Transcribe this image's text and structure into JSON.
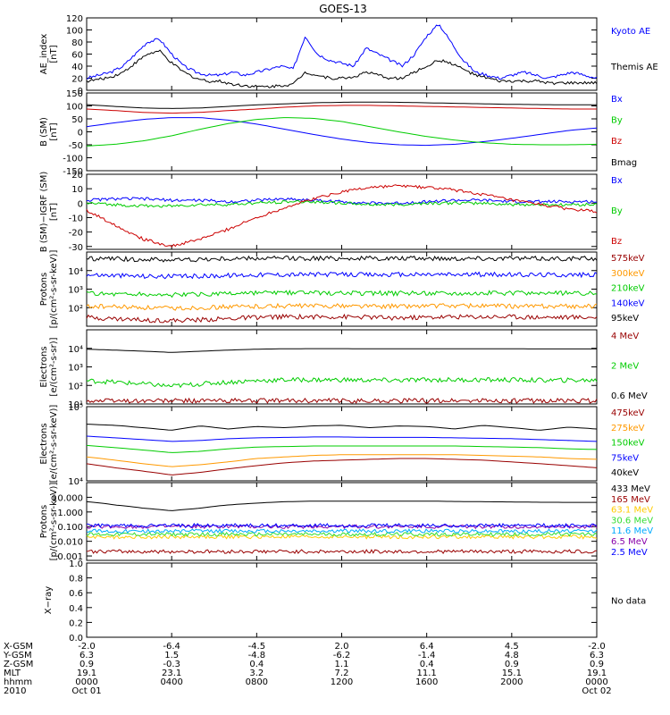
{
  "title": "GOES-13",
  "colors": {
    "black": "#000000",
    "blue": "#0000ff",
    "green": "#00cc00",
    "red": "#cc0000",
    "orange": "#ff9900",
    "darkred": "#990000",
    "yellow": "#ffcc00",
    "cyan": "#00aaff",
    "purple": "#8800aa",
    "brightgreen": "#33dd33"
  },
  "chart_data": [
    {
      "type": "line",
      "panel": "ae",
      "ylabel": "AE_index\n[nT]",
      "yticks": [
        "120",
        "100",
        "80",
        "60",
        "40",
        "20",
        "0"
      ],
      "ylim": [
        0,
        120
      ],
      "series": [
        {
          "name": "Kyoto AE",
          "color": "blue",
          "style": "noisy",
          "values": [
            20,
            25,
            30,
            40,
            60,
            80,
            85,
            60,
            40,
            30,
            25,
            25,
            30,
            25,
            30,
            35,
            40,
            35,
            90,
            60,
            50,
            45,
            40,
            70,
            60,
            50,
            40,
            60,
            90,
            110,
            80,
            50,
            30,
            25,
            20,
            25,
            30,
            25,
            20,
            25,
            30,
            25,
            20
          ]
        },
        {
          "name": "Themis AE",
          "color": "black",
          "style": "noisy",
          "values": [
            15,
            18,
            22,
            30,
            45,
            60,
            65,
            45,
            30,
            20,
            15,
            15,
            10,
            8,
            6,
            6,
            8,
            10,
            30,
            25,
            20,
            20,
            22,
            30,
            25,
            20,
            20,
            30,
            40,
            50,
            45,
            35,
            25,
            20,
            15,
            15,
            15,
            15,
            12,
            12,
            12,
            12,
            12
          ]
        }
      ]
    },
    {
      "type": "line",
      "panel": "b",
      "ylabel": "B (SM)\n[nT]",
      "yticks": [
        "150",
        "100",
        "50",
        "0",
        "-50",
        "-100",
        "-150"
      ],
      "ylim": [
        -150,
        150
      ],
      "series": [
        {
          "name": "Bx",
          "color": "blue",
          "values": [
            20,
            35,
            48,
            55,
            55,
            45,
            30,
            10,
            -10,
            -28,
            -42,
            -50,
            -52,
            -48,
            -38,
            -25,
            -10,
            5,
            15
          ]
        },
        {
          "name": "By",
          "color": "green",
          "values": [
            -55,
            -48,
            -35,
            -15,
            10,
            32,
            48,
            55,
            52,
            40,
            20,
            0,
            -18,
            -32,
            -42,
            -48,
            -50,
            -50,
            -48
          ]
        },
        {
          "name": "Bz",
          "color": "red",
          "values": [
            88,
            82,
            75,
            72,
            75,
            82,
            88,
            95,
            100,
            102,
            102,
            100,
            98,
            96,
            94,
            92,
            90,
            88,
            88
          ]
        },
        {
          "name": "Bmag",
          "color": "black",
          "values": [
            105,
            98,
            92,
            90,
            92,
            98,
            104,
            108,
            112,
            114,
            115,
            114,
            112,
            110,
            108,
            106,
            105,
            104,
            104
          ]
        }
      ]
    },
    {
      "type": "line",
      "panel": "bdiff",
      "ylabel": "B (SM)−IGRF (SM)\n[nT]",
      "yticks": [
        "20",
        "10",
        "0",
        "-10",
        "-20",
        "-30"
      ],
      "ylim": [
        -32,
        20
      ],
      "series": [
        {
          "name": "Bx",
          "color": "blue",
          "style": "noisy",
          "values": [
            2,
            3,
            3,
            2,
            2,
            1,
            2,
            3,
            2,
            1,
            0,
            0,
            1,
            2,
            2,
            1,
            1,
            1,
            1
          ]
        },
        {
          "name": "By",
          "color": "green",
          "style": "noisy",
          "values": [
            0,
            -1,
            -2,
            -2,
            -1,
            -1,
            0,
            1,
            1,
            0,
            -1,
            -1,
            0,
            0,
            0,
            -1,
            -1,
            -1,
            -1
          ]
        },
        {
          "name": "Bz",
          "color": "red",
          "style": "noisy",
          "values": [
            -5,
            -15,
            -25,
            -30,
            -25,
            -18,
            -10,
            -3,
            3,
            8,
            11,
            12,
            11,
            9,
            6,
            2,
            -1,
            -4,
            -6
          ]
        }
      ]
    },
    {
      "type": "line",
      "panel": "protons_low",
      "ylabel": "Protons\n[p/(cm²-s-sr-keV)]",
      "yscale": "log",
      "yticks": [
        "10⁴",
        "10³",
        "10²"
      ],
      "ylim": [
        10,
        100000
      ],
      "series": [
        {
          "name": "575keV",
          "color": "darkred",
          "style": "noisy",
          "values": [
            30,
            25,
            22,
            20,
            22,
            25,
            30,
            32,
            32,
            32,
            30,
            28,
            30,
            32,
            32,
            32,
            30,
            30,
            30
          ]
        },
        {
          "name": "300keV",
          "color": "orange",
          "style": "noisy",
          "values": [
            120,
            110,
            100,
            90,
            100,
            110,
            120,
            125,
            125,
            125,
            120,
            120,
            125,
            125,
            125,
            120,
            120,
            120,
            120
          ]
        },
        {
          "name": "210keV",
          "color": "green",
          "style": "noisy",
          "values": [
            600,
            560,
            520,
            480,
            520,
            560,
            600,
            620,
            620,
            620,
            600,
            600,
            620,
            620,
            620,
            600,
            600,
            600,
            600
          ]
        },
        {
          "name": "140keV",
          "color": "blue",
          "style": "noisy",
          "values": [
            6000,
            5500,
            5000,
            4800,
            5000,
            5500,
            6000,
            6200,
            6200,
            6200,
            6000,
            6000,
            6200,
            6200,
            6200,
            6000,
            6000,
            6000,
            6000
          ]
        },
        {
          "name": "95keV",
          "color": "black",
          "style": "noisy",
          "values": [
            45000,
            43000,
            40000,
            38000,
            40000,
            43000,
            45000,
            46000,
            46000,
            46000,
            45000,
            45000,
            46000,
            46000,
            46000,
            45000,
            45000,
            45000,
            45000
          ]
        }
      ]
    },
    {
      "type": "line",
      "panel": "electrons_mev",
      "ylabel": "Electrons\n[e/(cm²-s-sr)]",
      "yscale": "log",
      "yticks": [
        "10⁴",
        "10³",
        "10²",
        "10¹"
      ],
      "ylim": [
        10,
        100000
      ],
      "series": [
        {
          "name": "4 MeV",
          "color": "darkred",
          "style": "noisy",
          "values": [
            15,
            15,
            15,
            15,
            15,
            15,
            15,
            15,
            15,
            15,
            15,
            15,
            15,
            15,
            15,
            15,
            15,
            15,
            15
          ]
        },
        {
          "name": "2 MeV",
          "color": "green",
          "style": "noisy",
          "values": [
            180,
            150,
            120,
            90,
            120,
            150,
            180,
            200,
            200,
            200,
            190,
            190,
            200,
            200,
            200,
            200,
            190,
            190,
            190
          ]
        },
        {
          "name": "0.6 MeV",
          "color": "black",
          "values": [
            9000,
            8000,
            7000,
            6000,
            7000,
            8000,
            9000,
            9500,
            9600,
            9600,
            9500,
            9400,
            9500,
            9500,
            9500,
            9400,
            9300,
            9300,
            9300
          ]
        }
      ]
    },
    {
      "type": "line",
      "panel": "electrons_kev",
      "ylabel": "Electrons\n[e/(cm²-s-sr-keV)]",
      "yscale": "log",
      "yticks": [
        "10⁵",
        "10⁴"
      ],
      "ylim": [
        10000,
        100000
      ],
      "series": [
        {
          "name": "475keV",
          "color": "darkred",
          "values": [
            17000,
            15000,
            13500,
            12000,
            13000,
            14500,
            16000,
            17500,
            18500,
            19000,
            19500,
            20000,
            20000,
            19500,
            19000,
            18000,
            17000,
            16000,
            15000
          ]
        },
        {
          "name": "275keV",
          "color": "orange",
          "values": [
            21000,
            19000,
            17000,
            15500,
            16500,
            18000,
            20000,
            21000,
            22000,
            22500,
            22500,
            22500,
            22500,
            22500,
            22000,
            21500,
            21000,
            20000,
            19500
          ]
        },
        {
          "name": "150keV",
          "color": "green",
          "values": [
            30000,
            28000,
            26000,
            24000,
            25000,
            27000,
            28500,
            29000,
            29500,
            29500,
            29500,
            29500,
            29500,
            29500,
            29000,
            28500,
            28000,
            27000,
            26500
          ]
        },
        {
          "name": "75keV",
          "color": "blue",
          "values": [
            40000,
            38000,
            36000,
            34000,
            35000,
            37000,
            38000,
            38500,
            39000,
            39000,
            38500,
            38500,
            38500,
            38000,
            37500,
            37000,
            36000,
            35000,
            34000
          ]
        },
        {
          "name": "40keV",
          "color": "black",
          "values": [
            58000,
            56000,
            52000,
            48000,
            55000,
            50000,
            54000,
            52000,
            55000,
            56000,
            52000,
            55000,
            54000,
            50000,
            56000,
            52000,
            48000,
            53000,
            50000
          ]
        }
      ]
    },
    {
      "type": "line",
      "panel": "protons_high",
      "ylabel": "Protons\n[p/(cm²-s-sr-keV)]",
      "yscale": "log",
      "yticks": [
        "10.000",
        "1.000",
        "0.100",
        "0.010",
        "0.001"
      ],
      "ylim": [
        0.0005,
        100
      ],
      "series": [
        {
          "name": "433 MeV",
          "color": "black",
          "values": [
            5,
            3,
            1.8,
            1.2,
            1.8,
            3,
            4,
            5,
            5.5,
            5.5,
            5.5,
            5.5,
            5.5,
            5.2,
            5,
            4.8,
            4.6,
            4.5,
            4.5
          ]
        },
        {
          "name": "165 MeV",
          "color": "darkred",
          "style": "noisy",
          "values": [
            0.002,
            0.002,
            0.002,
            0.002,
            0.002,
            0.002,
            0.002,
            0.002,
            0.002,
            0.002,
            0.002,
            0.002,
            0.002,
            0.002,
            0.002,
            0.002,
            0.002,
            0.002,
            0.002
          ]
        },
        {
          "name": "63.1 MeV",
          "color": "yellow",
          "style": "noisy",
          "values": [
            0.02,
            0.02,
            0.02,
            0.02,
            0.02,
            0.02,
            0.02,
            0.02,
            0.02,
            0.02,
            0.02,
            0.02,
            0.02,
            0.02,
            0.02,
            0.02,
            0.02,
            0.02,
            0.02
          ]
        },
        {
          "name": "30.6 MeV",
          "color": "brightgreen",
          "style": "noisy",
          "values": [
            0.03,
            0.03,
            0.03,
            0.03,
            0.03,
            0.03,
            0.03,
            0.03,
            0.03,
            0.03,
            0.03,
            0.03,
            0.03,
            0.03,
            0.03,
            0.03,
            0.03,
            0.03,
            0.03
          ]
        },
        {
          "name": "11.6 MeV",
          "color": "cyan",
          "style": "noisy",
          "values": [
            0.05,
            0.05,
            0.05,
            0.05,
            0.05,
            0.05,
            0.05,
            0.05,
            0.05,
            0.05,
            0.05,
            0.05,
            0.05,
            0.05,
            0.05,
            0.05,
            0.05,
            0.05,
            0.05
          ]
        },
        {
          "name": "6.5 MeV",
          "color": "purple",
          "style": "noisy",
          "values": [
            0.1,
            0.1,
            0.1,
            0.1,
            0.1,
            0.1,
            0.1,
            0.1,
            0.1,
            0.1,
            0.1,
            0.1,
            0.1,
            0.1,
            0.1,
            0.1,
            0.1,
            0.1,
            0.1
          ]
        },
        {
          "name": "2.5 MeV",
          "color": "blue",
          "style": "noisy",
          "values": [
            0.12,
            0.12,
            0.12,
            0.12,
            0.12,
            0.12,
            0.12,
            0.12,
            0.12,
            0.12,
            0.12,
            0.12,
            0.12,
            0.12,
            0.12,
            0.12,
            0.12,
            0.12,
            0.12
          ]
        }
      ]
    },
    {
      "type": "line",
      "panel": "xray",
      "ylabel": "X−ray",
      "yticks": [
        "1.0",
        "0.8",
        "0.6",
        "0.4",
        "0.2",
        "0.0"
      ],
      "ylim": [
        0,
        1
      ],
      "note": "No data",
      "series": []
    }
  ],
  "orbit_table": {
    "labels": [
      "X-GSM",
      "Y-GSM",
      "Z-GSM",
      "MLT",
      "hhmm",
      "2010"
    ],
    "columns": [
      [
        "-2.0",
        "6.3",
        "0.9",
        "19.1",
        "0000",
        "Oct 01"
      ],
      [
        "-6.4",
        "1.5",
        "-0.3",
        "23.1",
        "0400",
        ""
      ],
      [
        "-4.5",
        "-4.8",
        "0.4",
        "3.2",
        "0800",
        ""
      ],
      [
        "2.0",
        "-6.2",
        "1.1",
        "7.2",
        "1200",
        ""
      ],
      [
        "6.4",
        "-1.4",
        "0.4",
        "11.1",
        "1600",
        ""
      ],
      [
        "4.5",
        "4.8",
        "0.9",
        "15.1",
        "2000",
        ""
      ],
      [
        "-2.0",
        "6.3",
        "0.9",
        "19.1",
        "0000",
        "Oct 02"
      ]
    ]
  }
}
